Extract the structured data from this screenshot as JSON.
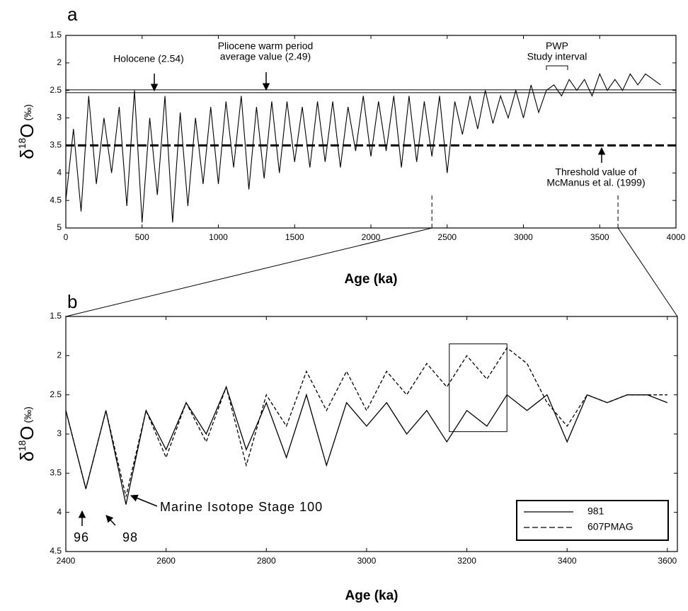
{
  "chart_data": [
    {
      "type": "line",
      "panel_label": "a",
      "x_label": "Age (ka)",
      "y_label": [
        "δ",
        "18",
        "O",
        "(‰)"
      ],
      "xlim": [
        0,
        4000
      ],
      "xticks": [
        0,
        500,
        1000,
        1500,
        2000,
        2500,
        3000,
        3500,
        4000
      ],
      "ylim": [
        1.5,
        5
      ],
      "y_inverted": true,
      "yticks": [
        1.5,
        2,
        2.5,
        3,
        3.5,
        4,
        4.5,
        5
      ],
      "color": "#000000",
      "x": [
        0,
        50,
        100,
        150,
        200,
        250,
        300,
        350,
        400,
        450,
        500,
        550,
        600,
        650,
        700,
        750,
        800,
        850,
        900,
        950,
        1000,
        1050,
        1100,
        1150,
        1200,
        1250,
        1300,
        1350,
        1400,
        1450,
        1500,
        1550,
        1600,
        1650,
        1700,
        1750,
        1800,
        1850,
        1900,
        1950,
        2000,
        2050,
        2100,
        2150,
        2200,
        2250,
        2300,
        2350,
        2400,
        2450,
        2500,
        2550,
        2600,
        2650,
        2700,
        2750,
        2800,
        2850,
        2900,
        2950,
        3000,
        3050,
        3100,
        3150,
        3200,
        3250,
        3300,
        3350,
        3400,
        3450,
        3500,
        3550,
        3600,
        3650,
        3700,
        3750,
        3800,
        3850,
        3900
      ],
      "values": [
        4.5,
        3.2,
        4.7,
        2.6,
        4.2,
        3.0,
        4.0,
        2.8,
        4.6,
        2.5,
        4.9,
        3.0,
        4.4,
        2.6,
        4.9,
        2.9,
        4.6,
        3.0,
        4.2,
        2.8,
        4.2,
        2.7,
        3.9,
        2.6,
        4.3,
        2.8,
        4.1,
        2.7,
        4.0,
        2.7,
        3.8,
        2.8,
        3.9,
        2.7,
        3.8,
        2.7,
        3.9,
        2.8,
        3.6,
        2.6,
        3.7,
        2.7,
        3.6,
        2.6,
        3.9,
        2.6,
        3.8,
        2.7,
        3.7,
        2.6,
        4.0,
        2.7,
        3.3,
        2.6,
        3.2,
        2.5,
        3.1,
        2.6,
        3.0,
        2.5,
        3.0,
        2.4,
        2.9,
        2.5,
        2.4,
        2.6,
        2.3,
        2.5,
        2.3,
        2.6,
        2.2,
        2.5,
        2.3,
        2.5,
        2.2,
        2.4,
        2.2,
        2.3,
        2.4
      ],
      "hlines": [
        {
          "value": 2.54,
          "style": "solid"
        },
        {
          "value": 2.49,
          "style": "solid"
        },
        {
          "value": 3.5,
          "style": "dashed"
        }
      ],
      "annotations": {
        "holocene": [
          "Holocene (2.54)"
        ],
        "pliocene": [
          "Pliocene warm period",
          "average value (2.49)"
        ],
        "pwp": [
          "PWP",
          "Study interval"
        ],
        "threshold": [
          "Threshold value of",
          "McManus et al. (1999)"
        ]
      }
    },
    {
      "type": "line",
      "panel_label": "b",
      "x_label": "Age (ka)",
      "y_label": [
        "δ",
        "18",
        "O",
        "(‰)"
      ],
      "xlim": [
        2400,
        3620
      ],
      "xticks": [
        2400,
        2600,
        2800,
        3000,
        3200,
        3400,
        3600
      ],
      "ylim": [
        1.5,
        4.5
      ],
      "y_inverted": true,
      "yticks": [
        1.5,
        2,
        2.5,
        3,
        3.5,
        4,
        4.5
      ],
      "x": [
        2400,
        2440,
        2480,
        2520,
        2560,
        2600,
        2640,
        2680,
        2720,
        2760,
        2800,
        2840,
        2880,
        2920,
        2960,
        3000,
        3040,
        3080,
        3120,
        3160,
        3200,
        3240,
        3280,
        3320,
        3360,
        3400,
        3440,
        3480,
        3520,
        3560,
        3600
      ],
      "series": [
        {
          "name": "981",
          "color": "#000000",
          "dash": "solid",
          "values": [
            2.7,
            3.7,
            2.7,
            3.9,
            2.7,
            3.2,
            2.6,
            3.0,
            2.4,
            3.2,
            2.6,
            3.3,
            2.5,
            3.4,
            2.6,
            2.9,
            2.6,
            3.0,
            2.7,
            3.1,
            2.7,
            2.9,
            2.5,
            2.7,
            2.5,
            3.1,
            2.5,
            2.6,
            2.5,
            2.5,
            2.6
          ]
        },
        {
          "name": "607PMAG",
          "color": "#000000",
          "dash": "dashed",
          "values": [
            2.7,
            3.7,
            2.7,
            3.8,
            2.7,
            3.3,
            2.6,
            3.1,
            2.4,
            3.4,
            2.5,
            2.9,
            2.2,
            2.7,
            2.2,
            2.7,
            2.2,
            2.5,
            2.1,
            2.4,
            2.0,
            2.3,
            1.9,
            2.1,
            2.6,
            2.9,
            2.5,
            2.6,
            2.5,
            2.5,
            2.5
          ]
        }
      ],
      "box": {
        "x": [
          3165,
          3280
        ],
        "y": [
          1.85,
          2.97
        ]
      },
      "annotations": {
        "s96": [
          "96"
        ],
        "s98": [
          "98"
        ],
        "s100": [
          "Marine Isotope Stage 100"
        ]
      },
      "legend": "lower right"
    }
  ]
}
